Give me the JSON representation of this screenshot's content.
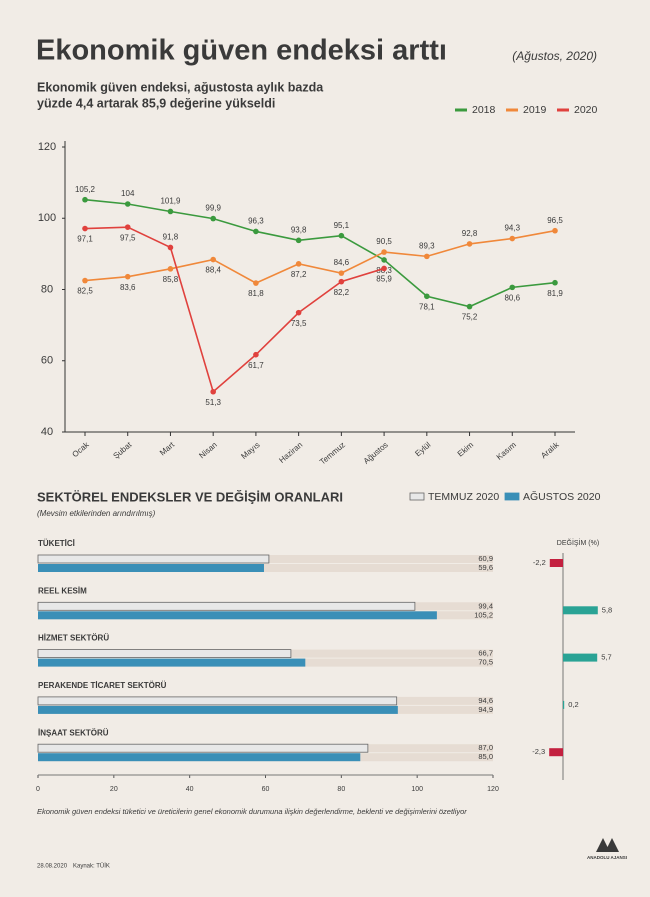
{
  "header": {
    "title": "Ekonomik güven endeksi arttı",
    "date": "(Ağustos, 2020)",
    "subtitle": [
      "Ekonomik güven endeksi, ağustosta aylık bazda",
      "yüzde 4,4 artarak 85,9 değerine yükseldi"
    ]
  },
  "chart_data": [
    {
      "type": "line",
      "categories": [
        "Ocak",
        "Şubat",
        "Mart",
        "Nisan",
        "Mayıs",
        "Haziran",
        "Temmuz",
        "Ağustos",
        "Eylül",
        "Ekim",
        "Kasım",
        "Aralık"
      ],
      "ylim": [
        40,
        120
      ],
      "yticks": [
        40,
        60,
        80,
        100,
        120
      ],
      "grid": false,
      "legend": "top-right",
      "series": [
        {
          "name": "2018",
          "color": "#3b9a3e",
          "values": [
            105.2,
            104,
            101.9,
            99.9,
            96.3,
            93.8,
            95.1,
            88.3,
            78.1,
            75.2,
            80.6,
            81.9
          ],
          "value_labels": [
            "105,2",
            "104",
            "101,9",
            "99,9",
            "96,3",
            "93,8",
            "95,1",
            "88,3",
            "78,1",
            "75,2",
            "80,6",
            "81,9"
          ]
        },
        {
          "name": "2019",
          "color": "#f0883a",
          "values": [
            82.5,
            83.6,
            85.8,
            88.4,
            81.8,
            87.2,
            84.6,
            90.5,
            89.3,
            92.8,
            94.3,
            96.5
          ],
          "value_labels": [
            "82,5",
            "83,6",
            "85,8",
            "88,4",
            "81,8",
            "87,2",
            "84,6",
            "90,5",
            "89,3",
            "92,8",
            "94,3",
            "96,5"
          ]
        },
        {
          "name": "2020",
          "color": "#e0413d",
          "values": [
            97.1,
            97.5,
            91.8,
            51.3,
            61.7,
            73.5,
            82.2,
            85.9,
            null,
            null,
            null,
            null
          ],
          "value_labels": [
            "97,1",
            "97,5",
            "91,8",
            "51,3",
            "61,7",
            "73,5",
            "82,2",
            "85,9",
            null,
            null,
            null,
            null
          ]
        }
      ]
    },
    {
      "type": "hbar",
      "title": "SEKTÖREL ENDEKSLER VE DEĞİŞİM ORANLARI",
      "subtitle": "(Mevsim etkilerinden arındırılmış)",
      "categories": [
        "TÜKETİCİ",
        "REEL KESİM",
        "HİZMET SEKTÖRÜ",
        "PERAKENDE TİCARET SEKTÖRÜ",
        "İNŞAAT SEKTÖRÜ"
      ],
      "xlim": [
        0,
        120
      ],
      "xticks": [
        0,
        20,
        40,
        60,
        80,
        100,
        120
      ],
      "series": [
        {
          "name": "TEMMUZ 2020",
          "color": "#e8e8e8",
          "values": [
            60.9,
            99.4,
            66.7,
            94.6,
            87.0
          ],
          "value_labels": [
            "60,9",
            "99,4",
            "66,7",
            "94,6",
            "87,0"
          ]
        },
        {
          "name": "AĞUSTOS 2020",
          "color": "#3a8fb7",
          "values": [
            59.6,
            105.2,
            70.5,
            94.9,
            85.0
          ],
          "value_labels": [
            "59,6",
            "105,2",
            "70,5",
            "94,9",
            "85,0"
          ]
        }
      ],
      "change": {
        "title": "DEĞİŞİM (%)",
        "values": [
          -2.2,
          5.8,
          5.7,
          0.2,
          -2.3
        ],
        "value_labels": [
          "-2,2",
          "5,8",
          "5,7",
          "0,2",
          "-2,3"
        ],
        "positive_color": "#2aa395",
        "negative_color": "#c3203f"
      }
    }
  ],
  "footer": {
    "note": "Ekonomik güven endeksi tüketici ve üreticilerin genel ekonomik durumuna ilişkin değerlendirme, beklenti ve değişimlerini özetliyor",
    "date": "28.08.2020",
    "source": "Kaynak: TÜİK",
    "logo": "ANADOLU AJANSI"
  }
}
